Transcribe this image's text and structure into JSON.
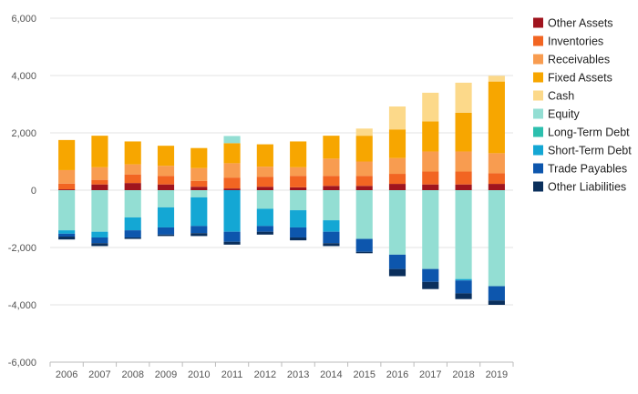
{
  "chart_data": {
    "type": "bar",
    "stacked": true,
    "title": "",
    "xlabel": "",
    "ylabel": "",
    "ylim": [
      -6000,
      6000
    ],
    "yticks": [
      -6000,
      -4000,
      -2000,
      0,
      2000,
      4000,
      6000
    ],
    "ytick_labels": [
      "-6,000",
      "-4,000",
      "-2,000",
      "0",
      "2,000",
      "4,000",
      "6,000"
    ],
    "grid": "horizontal",
    "legend_position": "right",
    "categories": [
      "2006",
      "2007",
      "2008",
      "2009",
      "2010",
      "2011",
      "2012",
      "2013",
      "2014",
      "2015",
      "2016",
      "2017",
      "2018",
      "2019"
    ],
    "series": [
      {
        "name": "Other Assets",
        "color": "#a0141e",
        "side": "positive",
        "values": [
          30,
          200,
          250,
          200,
          120,
          60,
          120,
          100,
          150,
          150,
          220,
          200,
          200,
          220
        ]
      },
      {
        "name": "Inventories",
        "color": "#f26522",
        "side": "positive",
        "values": [
          200,
          160,
          300,
          300,
          200,
          380,
          350,
          400,
          350,
          350,
          350,
          450,
          450,
          370
        ]
      },
      {
        "name": "Receivables",
        "color": "#f89c50",
        "side": "positive",
        "values": [
          470,
          440,
          350,
          350,
          450,
          500,
          350,
          300,
          600,
          500,
          550,
          700,
          700,
          700
        ]
      },
      {
        "name": "Fixed Assets",
        "color": "#f7a600",
        "side": "positive",
        "values": [
          1050,
          1100,
          800,
          700,
          700,
          700,
          780,
          900,
          800,
          900,
          1000,
          1050,
          1350,
          2500
        ]
      },
      {
        "name": "Cash",
        "color": "#fcd98a",
        "side": "positive",
        "values": [
          0,
          0,
          0,
          0,
          0,
          0,
          0,
          0,
          0,
          250,
          800,
          1000,
          1050,
          200
        ]
      },
      {
        "name": "Equity",
        "color": "#93ded3",
        "side": "both",
        "values": [
          -1400,
          -1450,
          -950,
          -600,
          -250,
          250,
          -650,
          -700,
          -1050,
          -1700,
          -2250,
          -2750,
          -3100,
          -3350
        ]
      },
      {
        "name": "Long-Term Debt",
        "color": "#2cbfae",
        "side": "negative",
        "values": [
          0,
          0,
          0,
          0,
          0,
          0,
          0,
          0,
          0,
          0,
          0,
          0,
          0,
          0
        ]
      },
      {
        "name": "Short-Term Debt",
        "color": "#14a7d4",
        "side": "negative",
        "values": [
          -120,
          -200,
          -450,
          -700,
          -1000,
          -1450,
          -600,
          -600,
          -400,
          0,
          0,
          0,
          -50,
          0
        ]
      },
      {
        "name": "Trade Payables",
        "color": "#0d56ad",
        "side": "negative",
        "values": [
          -100,
          -200,
          -250,
          -250,
          -250,
          -350,
          -200,
          -350,
          -400,
          -450,
          -500,
          -450,
          -450,
          -500
        ]
      },
      {
        "name": "Other Liabilities",
        "color": "#0a2f5c",
        "side": "negative",
        "values": [
          -100,
          -100,
          -50,
          -50,
          -100,
          -100,
          -100,
          -100,
          -100,
          -50,
          -250,
          -250,
          -200,
          -150
        ]
      }
    ]
  }
}
